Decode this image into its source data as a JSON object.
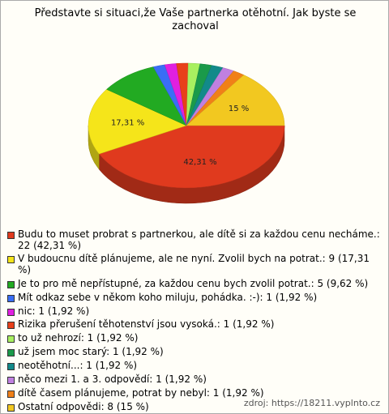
{
  "chart_data": {
    "type": "pie",
    "title": "Představte si situaci,že Vaše partnerka otěhotní. Jak byste se zachoval",
    "categories": [
      "Budu to muset probrat s partnerkou, ale dítě si za každou cenu necháme.: 22 (42,31 %)",
      "V budoucnu dítě plánujeme, ale ne nyní. Zvolil bych na potrat.: 9 (17,31 %)",
      "Je to pro mě nepřístupné, za každou cenu bych zvolil potrat.: 5 (9,62 %)",
      "Mít odkaz sebe v někom koho miluju, pohádka. :-): 1 (1,92 %)",
      "nic: 1 (1,92 %)",
      "Rizika přerušení těhotenství jsou vysoká.: 1 (1,92 %)",
      "to už nehrozí: 1 (1,92 %)",
      "už jsem moc starý: 1 (1,92 %)",
      "neotěhotní...: 1 (1,92 %)",
      "něco mezi 1. a 3. odpovědí: 1 (1,92 %)",
      "dítě časem plánujeme, potrat by nebyl: 1 (1,92 %)",
      "Ostatní odpovědi: 8 (15 %)"
    ],
    "values": [
      42.31,
      17.31,
      9.62,
      1.92,
      1.92,
      1.92,
      1.92,
      1.92,
      1.92,
      1.92,
      1.92,
      15
    ],
    "value_labels": [
      "42,31 %",
      "17,31 %",
      null,
      null,
      null,
      null,
      null,
      null,
      null,
      null,
      null,
      "15 %"
    ],
    "colors": [
      "#e03a1e",
      "#f5e51a",
      "#22aa22",
      "#3a6ef5",
      "#e020e0",
      "#e8401a",
      "#a8f060",
      "#1a9a4a",
      "#128a8a",
      "#c080e0",
      "#f08018",
      "#f2c820"
    ],
    "source": "zdroj: https://18211.vyplnto.cz"
  }
}
